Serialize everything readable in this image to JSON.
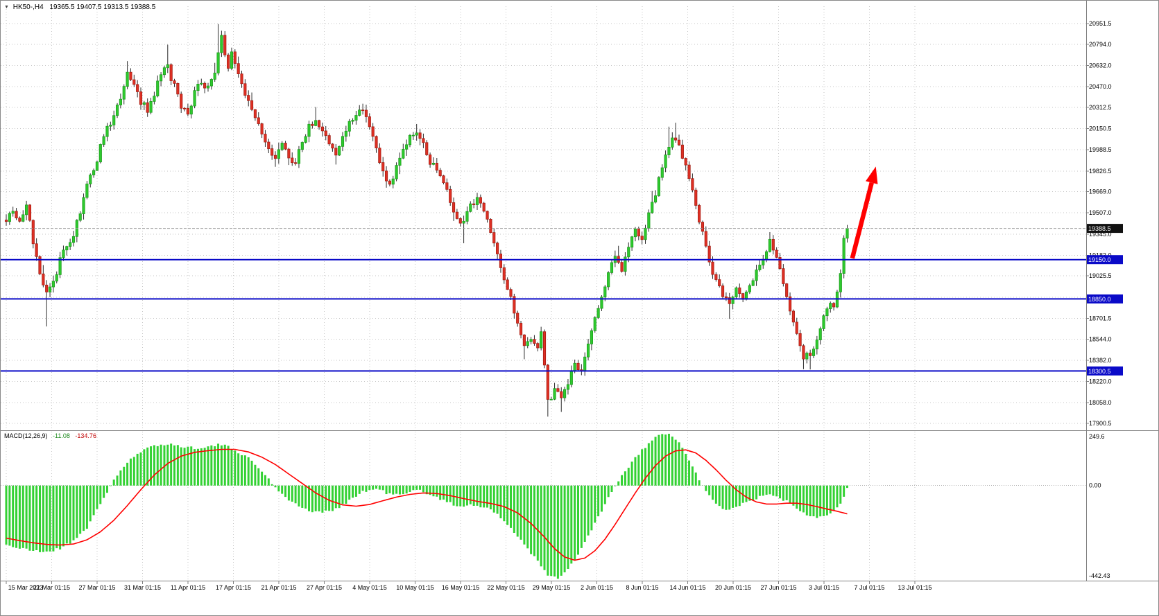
{
  "header": {
    "symbol_marker": "▼",
    "symbol_title": "HK50-,H4",
    "ohlc_values": "19365.5 19407.5 19313.5 19388.5"
  },
  "colors": {
    "background": "#ffffff",
    "bull": "#2eca2e",
    "bull_border": "#1b9a1b",
    "bear": "#de3024",
    "bear_border": "#a31c12",
    "wick": "#2b2b2b",
    "grid": "#c6c6c6",
    "level_line": "#0a0ac8",
    "price_line": "#9c9c9c",
    "tag_current_bg": "#111111",
    "tag_level_bg": "#0a0ac8",
    "macd_hist": "#33d133",
    "macd_signal": "#ff0000",
    "separator": "#808080",
    "arrow": "#ff0000"
  },
  "chart_data": [
    {
      "type": "candlestick",
      "symbol": "HK50-",
      "timeframe": "H4",
      "ohlc_display": {
        "open": "19365.5",
        "high": "19407.5",
        "low": "19313.5",
        "close": "19388.5"
      },
      "candle_count": 251,
      "ylim": [
        17858,
        21085
      ],
      "y_tick_labels": [
        "20951.5",
        "20794.0",
        "20632.0",
        "20470.0",
        "20312.5",
        "20150.5",
        "19988.5",
        "19826.5",
        "19669.0",
        "19507.0",
        "19345.0",
        "19183.0",
        "19025.5",
        "18863.5",
        "18701.5",
        "18544.0",
        "18382.0",
        "18220.0",
        "18058.0",
        "17900.5"
      ],
      "x_tick_labels": [
        "15 Mar 2023",
        "21 Mar 01:15",
        "27 Mar 01:15",
        "31 Mar 01:15",
        "11 Apr 01:15",
        "17 Apr 01:15",
        "21 Apr 01:15",
        "27 Apr 01:15",
        "4 May 01:15",
        "10 May 01:15",
        "16 May 01:15",
        "22 May 01:15",
        "29 May 01:15",
        "2 Jun 01:15",
        "8 Jun 01:15",
        "14 Jun 01:15",
        "20 Jun 01:15",
        "27 Jun 01:15",
        "3 Jul 01:15",
        "7 Jul 01:15",
        "13 Jul 01:15"
      ],
      "close_waypoints": [
        [
          0,
          19470
        ],
        [
          2,
          19540
        ],
        [
          4,
          19420
        ],
        [
          6,
          19560
        ],
        [
          8,
          19300
        ],
        [
          10,
          19050
        ],
        [
          12,
          18900
        ],
        [
          14,
          18980
        ],
        [
          16,
          19150
        ],
        [
          18,
          19280
        ],
        [
          20,
          19340
        ],
        [
          22,
          19520
        ],
        [
          24,
          19700
        ],
        [
          26,
          19850
        ],
        [
          28,
          20000
        ],
        [
          30,
          20150
        ],
        [
          32,
          20230
        ],
        [
          34,
          20380
        ],
        [
          36,
          20560
        ],
        [
          38,
          20480
        ],
        [
          40,
          20360
        ],
        [
          42,
          20280
        ],
        [
          44,
          20420
        ],
        [
          46,
          20560
        ],
        [
          48,
          20620
        ],
        [
          50,
          20470
        ],
        [
          52,
          20330
        ],
        [
          54,
          20280
        ],
        [
          56,
          20420
        ],
        [
          58,
          20500
        ],
        [
          60,
          20450
        ],
        [
          62,
          20600
        ],
        [
          63,
          20750
        ],
        [
          64,
          20840
        ],
        [
          65,
          20700
        ],
        [
          66,
          20620
        ],
        [
          67,
          20740
        ],
        [
          68,
          20650
        ],
        [
          70,
          20480
        ],
        [
          72,
          20380
        ],
        [
          74,
          20250
        ],
        [
          76,
          20120
        ],
        [
          78,
          19980
        ],
        [
          80,
          19900
        ],
        [
          82,
          20020
        ],
        [
          84,
          19950
        ],
        [
          86,
          19890
        ],
        [
          88,
          20060
        ],
        [
          90,
          20160
        ],
        [
          92,
          20220
        ],
        [
          94,
          20130
        ],
        [
          96,
          20020
        ],
        [
          98,
          19950
        ],
        [
          100,
          20080
        ],
        [
          102,
          20180
        ],
        [
          104,
          20260
        ],
        [
          106,
          20310
        ],
        [
          108,
          20180
        ],
        [
          110,
          19980
        ],
        [
          112,
          19820
        ],
        [
          114,
          19720
        ],
        [
          116,
          19860
        ],
        [
          118,
          19980
        ],
        [
          120,
          20080
        ],
        [
          122,
          20130
        ],
        [
          124,
          20020
        ],
        [
          126,
          19900
        ],
        [
          128,
          19820
        ],
        [
          130,
          19720
        ],
        [
          132,
          19600
        ],
        [
          134,
          19480
        ],
        [
          136,
          19420
        ],
        [
          138,
          19560
        ],
        [
          140,
          19620
        ],
        [
          142,
          19500
        ],
        [
          144,
          19380
        ],
        [
          146,
          19200
        ],
        [
          148,
          18980
        ],
        [
          150,
          18850
        ],
        [
          152,
          18650
        ],
        [
          154,
          18480
        ],
        [
          156,
          18560
        ],
        [
          158,
          18450
        ],
        [
          159,
          18620
        ],
        [
          161,
          18060
        ],
        [
          163,
          18160
        ],
        [
          165,
          18080
        ],
        [
          167,
          18220
        ],
        [
          169,
          18360
        ],
        [
          171,
          18300
        ],
        [
          173,
          18520
        ],
        [
          175,
          18700
        ],
        [
          177,
          18850
        ],
        [
          179,
          19050
        ],
        [
          181,
          19150
        ],
        [
          183,
          19080
        ],
        [
          185,
          19250
        ],
        [
          187,
          19380
        ],
        [
          189,
          19320
        ],
        [
          191,
          19480
        ],
        [
          193,
          19650
        ],
        [
          195,
          19850
        ],
        [
          197,
          20020
        ],
        [
          199,
          20080
        ],
        [
          201,
          19950
        ],
        [
          203,
          19780
        ],
        [
          205,
          19550
        ],
        [
          207,
          19350
        ],
        [
          209,
          19150
        ],
        [
          211,
          18980
        ],
        [
          213,
          18870
        ],
        [
          215,
          18800
        ],
        [
          217,
          18920
        ],
        [
          219,
          18850
        ],
        [
          221,
          18950
        ],
        [
          223,
          19050
        ],
        [
          225,
          19180
        ],
        [
          227,
          19300
        ],
        [
          229,
          19190
        ],
        [
          231,
          18980
        ],
        [
          233,
          18760
        ],
        [
          235,
          18560
        ],
        [
          237,
          18400
        ],
        [
          239,
          18430
        ],
        [
          241,
          18560
        ],
        [
          243,
          18700
        ],
        [
          245,
          18820
        ],
        [
          246,
          18760
        ],
        [
          247,
          18900
        ],
        [
          248,
          19050
        ],
        [
          249,
          19300
        ],
        [
          250,
          19388.5
        ]
      ],
      "wick_extremes": {
        "highs": [
          [
            36,
            20665
          ],
          [
            48,
            20790
          ],
          [
            63,
            20948
          ],
          [
            92,
            20315
          ],
          [
            106,
            20340
          ],
          [
            122,
            20185
          ],
          [
            197,
            20165
          ],
          [
            199,
            20195
          ],
          [
            227,
            19360
          ]
        ],
        "lows": [
          [
            12,
            18640
          ],
          [
            80,
            19858
          ],
          [
            136,
            19275
          ],
          [
            154,
            18390
          ],
          [
            161,
            17952
          ],
          [
            165,
            17988
          ],
          [
            215,
            18698
          ],
          [
            237,
            18328
          ],
          [
            239,
            18312
          ]
        ]
      },
      "levels": [
        {
          "price": 19150.0,
          "label": "19150.0"
        },
        {
          "price": 18850.0,
          "label": "18850.0"
        },
        {
          "price": 18300.5,
          "label": "18300.5"
        }
      ],
      "current_price": {
        "price": 19388.5,
        "label": "19388.5"
      },
      "annotation_arrow": {
        "from_bar": 251.5,
        "from_price": 19160,
        "to_bar": 258.5,
        "to_price": 19860
      }
    },
    {
      "type": "macd",
      "label": "MACD(12,26,9)",
      "main_value": "-11.08",
      "signal_value": "-134.76",
      "ylim": [
        -442.43,
        249.6
      ],
      "y_tick_labels": [
        "249.6",
        "0.00",
        "-442.43"
      ],
      "histogram_waypoints": [
        [
          0,
          -280
        ],
        [
          4,
          -300
        ],
        [
          8,
          -310
        ],
        [
          12,
          -315
        ],
        [
          16,
          -300
        ],
        [
          20,
          -260
        ],
        [
          24,
          -200
        ],
        [
          28,
          -90
        ],
        [
          30,
          -30
        ],
        [
          32,
          30
        ],
        [
          36,
          110
        ],
        [
          40,
          160
        ],
        [
          44,
          190
        ],
        [
          48,
          200
        ],
        [
          52,
          185
        ],
        [
          56,
          180
        ],
        [
          60,
          185
        ],
        [
          64,
          195
        ],
        [
          68,
          170
        ],
        [
          72,
          130
        ],
        [
          76,
          70
        ],
        [
          79,
          10
        ],
        [
          82,
          -40
        ],
        [
          86,
          -90
        ],
        [
          90,
          -120
        ],
        [
          94,
          -130
        ],
        [
          98,
          -110
        ],
        [
          102,
          -70
        ],
        [
          106,
          -30
        ],
        [
          110,
          -15
        ],
        [
          114,
          -40
        ],
        [
          118,
          -45
        ],
        [
          122,
          -20
        ],
        [
          126,
          -40
        ],
        [
          130,
          -70
        ],
        [
          134,
          -100
        ],
        [
          138,
          -90
        ],
        [
          142,
          -100
        ],
        [
          146,
          -140
        ],
        [
          150,
          -200
        ],
        [
          154,
          -280
        ],
        [
          158,
          -360
        ],
        [
          161,
          -430
        ],
        [
          164,
          -440
        ],
        [
          167,
          -400
        ],
        [
          170,
          -330
        ],
        [
          173,
          -240
        ],
        [
          176,
          -150
        ],
        [
          179,
          -60
        ],
        [
          182,
          20
        ],
        [
          185,
          90
        ],
        [
          188,
          150
        ],
        [
          191,
          200
        ],
        [
          194,
          240
        ],
        [
          196,
          248
        ],
        [
          198,
          235
        ],
        [
          200,
          200
        ],
        [
          202,
          150
        ],
        [
          204,
          90
        ],
        [
          206,
          30
        ],
        [
          208,
          -30
        ],
        [
          211,
          -90
        ],
        [
          214,
          -115
        ],
        [
          217,
          -100
        ],
        [
          220,
          -80
        ],
        [
          223,
          -60
        ],
        [
          226,
          -45
        ],
        [
          229,
          -50
        ],
        [
          232,
          -75
        ],
        [
          235,
          -105
        ],
        [
          238,
          -135
        ],
        [
          241,
          -150
        ],
        [
          244,
          -140
        ],
        [
          247,
          -100
        ],
        [
          249,
          -60
        ],
        [
          250,
          -11.08
        ]
      ],
      "signal_waypoints": [
        [
          0,
          -250
        ],
        [
          4,
          -262
        ],
        [
          8,
          -272
        ],
        [
          12,
          -280
        ],
        [
          16,
          -283
        ],
        [
          20,
          -278
        ],
        [
          24,
          -258
        ],
        [
          28,
          -220
        ],
        [
          32,
          -165
        ],
        [
          36,
          -95
        ],
        [
          40,
          -20
        ],
        [
          44,
          50
        ],
        [
          48,
          105
        ],
        [
          52,
          140
        ],
        [
          56,
          158
        ],
        [
          60,
          166
        ],
        [
          64,
          172
        ],
        [
          68,
          172
        ],
        [
          72,
          160
        ],
        [
          76,
          135
        ],
        [
          80,
          100
        ],
        [
          84,
          55
        ],
        [
          88,
          10
        ],
        [
          92,
          -35
        ],
        [
          96,
          -70
        ],
        [
          100,
          -92
        ],
        [
          104,
          -98
        ],
        [
          108,
          -90
        ],
        [
          112,
          -72
        ],
        [
          116,
          -55
        ],
        [
          120,
          -42
        ],
        [
          124,
          -35
        ],
        [
          128,
          -38
        ],
        [
          132,
          -48
        ],
        [
          136,
          -62
        ],
        [
          140,
          -75
        ],
        [
          144,
          -85
        ],
        [
          148,
          -100
        ],
        [
          152,
          -130
        ],
        [
          156,
          -180
        ],
        [
          160,
          -245
        ],
        [
          163,
          -300
        ],
        [
          166,
          -340
        ],
        [
          169,
          -355
        ],
        [
          172,
          -345
        ],
        [
          175,
          -310
        ],
        [
          178,
          -255
        ],
        [
          181,
          -185
        ],
        [
          184,
          -110
        ],
        [
          187,
          -35
        ],
        [
          190,
          35
        ],
        [
          193,
          95
        ],
        [
          196,
          140
        ],
        [
          199,
          165
        ],
        [
          202,
          170
        ],
        [
          205,
          155
        ],
        [
          208,
          120
        ],
        [
          211,
          75
        ],
        [
          214,
          25
        ],
        [
          217,
          -20
        ],
        [
          220,
          -55
        ],
        [
          223,
          -78
        ],
        [
          226,
          -88
        ],
        [
          229,
          -88
        ],
        [
          232,
          -84
        ],
        [
          235,
          -84
        ],
        [
          238,
          -90
        ],
        [
          241,
          -100
        ],
        [
          244,
          -112
        ],
        [
          247,
          -122
        ],
        [
          250,
          -134.76
        ]
      ]
    }
  ]
}
